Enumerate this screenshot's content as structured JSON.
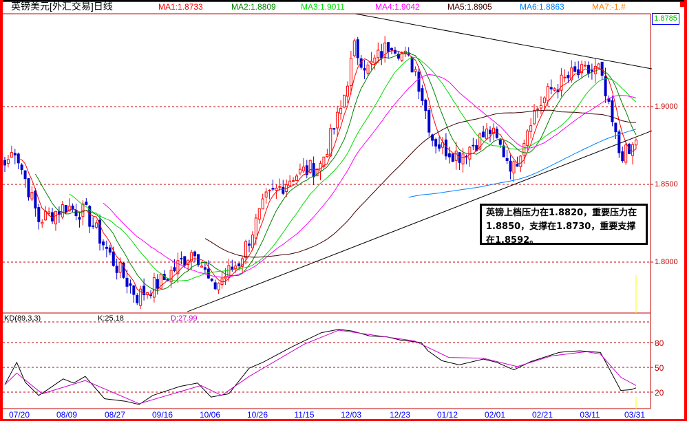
{
  "header": {
    "title": "英镑美元[外汇交易]日线",
    "ma": [
      {
        "label": "MA1:1.8733",
        "color": "#ff0000"
      },
      {
        "label": "MA2:1.8809",
        "color": "#008000"
      },
      {
        "label": "MA3:1.9011",
        "color": "#00dd00"
      },
      {
        "label": "MA4:1.9042",
        "color": "#ff00ff"
      },
      {
        "label": "MA5:1.8905",
        "color": "#400000"
      },
      {
        "label": "MA6:1.8863",
        "color": "#0080ff"
      },
      {
        "label": "MA7:-1.#",
        "color": "#ff8000"
      }
    ]
  },
  "price_axis": {
    "last_price": "1.8785",
    "labels": [
      "1.9000",
      "1.8500",
      "1.8000"
    ]
  },
  "kd": {
    "label": "KD(89,3,3)",
    "k_label": "K:25.18",
    "d_label": "D:27.99",
    "axis_labels": [
      "80",
      "50",
      "20"
    ]
  },
  "dates": [
    "07/20",
    "08/09",
    "08/27",
    "09/16",
    "10/06",
    "10/26",
    "11/15",
    "12/03",
    "12/23",
    "01/12",
    "02/01",
    "02/21",
    "03/11",
    "03/31"
  ],
  "annotation": "英镑上档压力在1.8820，重要压力在1.8850，支撑在1.8730，重要支撑在1.8592。",
  "chart_data": [
    {
      "type": "candlestick",
      "title": "英镑美元[外汇交易]日线",
      "ylim": [
        1.7673,
        1.9597
      ],
      "yticks": [
        1.8,
        1.85,
        1.9
      ],
      "n_days": 187,
      "close_path": [
        [
          0,
          1.8624
        ],
        [
          3,
          1.8735
        ],
        [
          10,
          1.827
        ],
        [
          18,
          1.836
        ],
        [
          24,
          1.8314
        ],
        [
          32,
          1.8004
        ],
        [
          39,
          1.778
        ],
        [
          47,
          1.789
        ],
        [
          56,
          1.809
        ],
        [
          61,
          1.7827
        ],
        [
          69,
          1.8004
        ],
        [
          77,
          1.84
        ],
        [
          85,
          1.8558
        ],
        [
          93,
          1.8624
        ],
        [
          99,
          1.8978
        ],
        [
          103,
          1.9376
        ],
        [
          107,
          1.9243
        ],
        [
          114,
          1.942
        ],
        [
          121,
          1.924
        ],
        [
          126,
          1.88
        ],
        [
          129,
          1.8735
        ],
        [
          134,
          1.869
        ],
        [
          143,
          1.8845
        ],
        [
          150,
          1.86
        ],
        [
          155,
          1.8934
        ],
        [
          161,
          1.911
        ],
        [
          167,
          1.92
        ],
        [
          175,
          1.924
        ],
        [
          181,
          1.871
        ],
        [
          184,
          1.869
        ],
        [
          186,
          1.8785
        ]
      ],
      "ma_periods": [
        5,
        10,
        20,
        30,
        60,
        120
      ],
      "ma_colors": [
        "#ff0000",
        "#008000",
        "#00dd00",
        "#ff00ff",
        "#400000",
        "#0080ff"
      ],
      "trendlines": [
        {
          "name": "resistance",
          "from": [
            103.4,
            1.9597
          ],
          "to": [
            190.7,
            1.9243
          ]
        },
        {
          "name": "support",
          "from": [
            53.8,
            1.7681
          ],
          "to": [
            190.7,
            1.8845
          ]
        }
      ],
      "up_color": "#ff0000",
      "down_color": "#0000cc"
    },
    {
      "type": "line",
      "title": "KD(89,3,3)",
      "ylim": [
        0,
        100
      ],
      "yticks": [
        20,
        50,
        80
      ],
      "series": [
        {
          "name": "K",
          "color": "#000000",
          "points": [
            [
              0,
              29
            ],
            [
              3.5,
              56
            ],
            [
              6,
              32
            ],
            [
              10,
              16
            ],
            [
              12.6,
              23
            ],
            [
              17.2,
              36
            ],
            [
              20.3,
              31
            ],
            [
              23.7,
              39
            ],
            [
              29.4,
              12
            ],
            [
              35.5,
              9
            ],
            [
              39.6,
              5
            ],
            [
              43.6,
              16
            ],
            [
              51.7,
              27
            ],
            [
              56.8,
              31
            ],
            [
              60.8,
              14
            ],
            [
              66,
              18
            ],
            [
              72,
              49
            ],
            [
              76,
              56
            ],
            [
              84.2,
              74
            ],
            [
              88.2,
              82
            ],
            [
              93.3,
              92
            ],
            [
              98.4,
              96
            ],
            [
              102.4,
              94
            ],
            [
              107.5,
              88
            ],
            [
              112.6,
              87
            ],
            [
              116.6,
              83
            ],
            [
              122.7,
              80
            ],
            [
              124.7,
              70
            ],
            [
              128.8,
              58
            ],
            [
              133.9,
              53
            ],
            [
              141,
              60
            ],
            [
              145,
              56
            ],
            [
              150,
              47
            ],
            [
              155,
              57
            ],
            [
              163.3,
              68
            ],
            [
              165.3,
              69
            ],
            [
              169.4,
              70
            ],
            [
              175.5,
              68
            ],
            [
              177.5,
              53
            ],
            [
              181.5,
              22
            ],
            [
              184.6,
              23
            ],
            [
              186,
              25.18
            ]
          ]
        },
        {
          "name": "D",
          "color": "#cc00cc",
          "points": [
            [
              0,
              29
            ],
            [
              3.5,
              43
            ],
            [
              11,
              18
            ],
            [
              23.7,
              34
            ],
            [
              39.6,
              6
            ],
            [
              57.8,
              28
            ],
            [
              63.9,
              16
            ],
            [
              72,
              39
            ],
            [
              88.2,
              78
            ],
            [
              98.4,
              95
            ],
            [
              120.7,
              82
            ],
            [
              130.8,
              62
            ],
            [
              141,
              61
            ],
            [
              151,
              51
            ],
            [
              161.3,
              64
            ],
            [
              171.4,
              69
            ],
            [
              175.5,
              66
            ],
            [
              181.5,
              38
            ],
            [
              186,
              27.99
            ]
          ]
        }
      ]
    }
  ]
}
